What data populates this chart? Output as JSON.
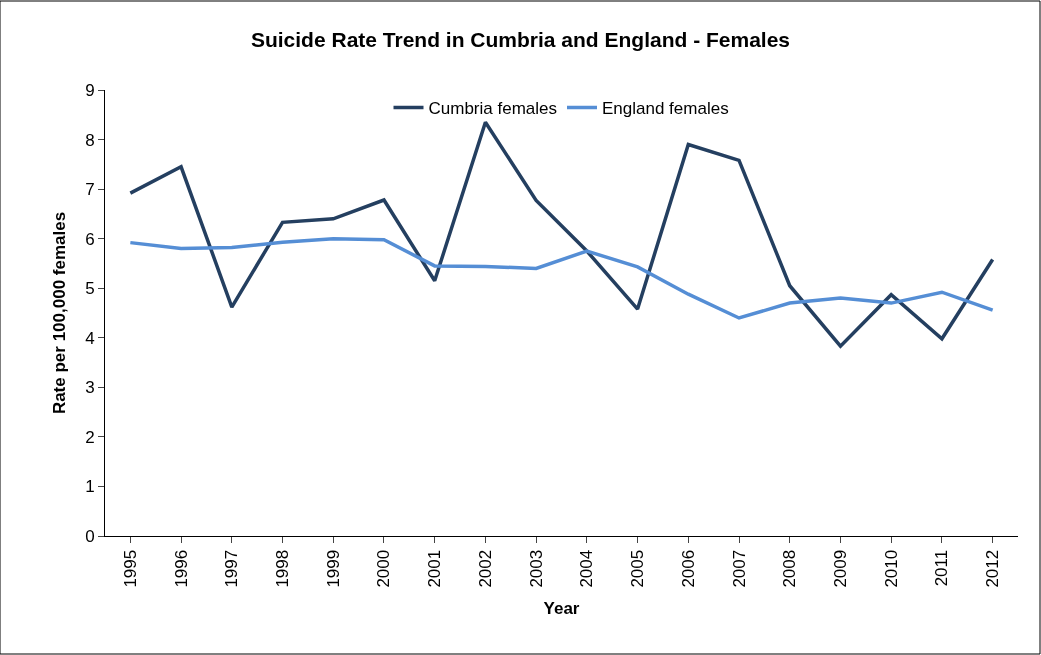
{
  "chart_data": {
    "type": "line",
    "title": "Suicide Rate Trend in Cumbria and England - Females",
    "xlabel": "Year",
    "ylabel": "Rate per 100,000 females",
    "categories": [
      "1995",
      "1996",
      "1997",
      "1998",
      "1999",
      "2000",
      "2001",
      "2002",
      "2003",
      "2004",
      "2005",
      "2006",
      "2007",
      "2008",
      "2009",
      "2010",
      "2011",
      "2012"
    ],
    "series": [
      {
        "name": "Cumbria females",
        "color": "#243f60",
        "values": [
          6.92,
          7.45,
          4.62,
          6.33,
          6.4,
          6.78,
          5.15,
          8.35,
          6.77,
          5.75,
          4.58,
          7.9,
          7.58,
          5.05,
          3.83,
          4.87,
          3.98,
          5.58
        ]
      },
      {
        "name": "England females",
        "color": "#558ed5",
        "values": [
          5.92,
          5.8,
          5.82,
          5.93,
          6.0,
          5.98,
          5.45,
          5.44,
          5.4,
          5.75,
          5.43,
          4.88,
          4.4,
          4.7,
          4.8,
          4.7,
          4.92,
          4.56
        ]
      }
    ],
    "ylim": [
      0,
      9
    ],
    "yticks": [
      0,
      1,
      2,
      3,
      4,
      5,
      6,
      7,
      8,
      9
    ],
    "grid": false,
    "legend": "top",
    "marker": "none",
    "line_style": "solid"
  }
}
